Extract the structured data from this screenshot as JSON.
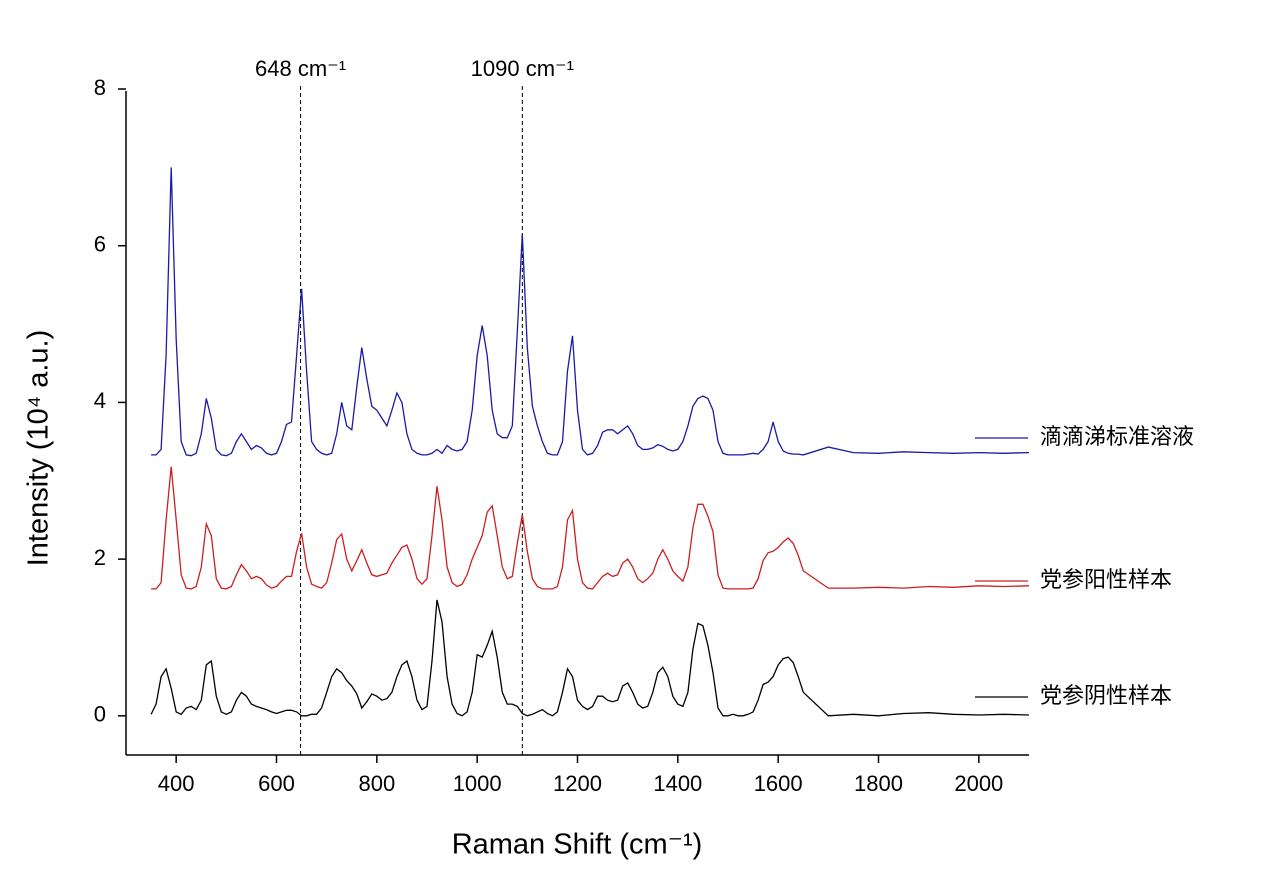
{
  "chart_data": {
    "type": "line",
    "xlabel": "Raman Shift (cm⁻¹)",
    "ylabel": "Intensity (10⁴ a.u.)",
    "xlim": [
      300,
      2100
    ],
    "ylim": [
      -0.5,
      8
    ],
    "xticks": [
      400,
      600,
      800,
      1000,
      1200,
      1400,
      1600,
      1800,
      2000
    ],
    "yticks": [
      0,
      2,
      4,
      6,
      8
    ],
    "annotations": [
      {
        "x": 648,
        "label": "648 cm⁻¹"
      },
      {
        "x": 1090,
        "label": "1090 cm⁻¹"
      }
    ],
    "x": [
      350,
      360,
      370,
      380,
      390,
      400,
      410,
      420,
      430,
      440,
      450,
      460,
      470,
      480,
      490,
      500,
      510,
      520,
      530,
      540,
      550,
      560,
      570,
      580,
      590,
      600,
      610,
      620,
      630,
      640,
      650,
      660,
      670,
      680,
      690,
      700,
      710,
      720,
      730,
      740,
      750,
      760,
      770,
      780,
      790,
      800,
      810,
      820,
      830,
      840,
      850,
      860,
      870,
      880,
      890,
      900,
      910,
      920,
      930,
      940,
      950,
      960,
      970,
      980,
      990,
      1000,
      1010,
      1020,
      1030,
      1040,
      1050,
      1060,
      1070,
      1080,
      1090,
      1100,
      1110,
      1120,
      1130,
      1140,
      1150,
      1160,
      1170,
      1180,
      1190,
      1200,
      1210,
      1220,
      1230,
      1240,
      1250,
      1260,
      1270,
      1280,
      1290,
      1300,
      1310,
      1320,
      1330,
      1340,
      1350,
      1360,
      1370,
      1380,
      1390,
      1400,
      1410,
      1420,
      1430,
      1440,
      1450,
      1460,
      1470,
      1480,
      1490,
      1500,
      1510,
      1520,
      1530,
      1540,
      1550,
      1560,
      1570,
      1580,
      1590,
      1600,
      1610,
      1620,
      1630,
      1640,
      1650,
      1700,
      1750,
      1800,
      1850,
      1900,
      1950,
      2000,
      2050,
      2100
    ],
    "series": [
      {
        "name": "滴滴涕标准溶液",
        "color": "#1a1aa8",
        "values": [
          3.33,
          3.33,
          3.4,
          4.6,
          7.0,
          4.8,
          3.5,
          3.33,
          3.32,
          3.35,
          3.6,
          4.05,
          3.8,
          3.4,
          3.33,
          3.32,
          3.35,
          3.5,
          3.6,
          3.5,
          3.4,
          3.45,
          3.42,
          3.35,
          3.33,
          3.35,
          3.5,
          3.72,
          3.75,
          4.6,
          5.45,
          4.4,
          3.5,
          3.4,
          3.35,
          3.33,
          3.35,
          3.6,
          4.0,
          3.7,
          3.65,
          4.2,
          4.7,
          4.3,
          3.95,
          3.9,
          3.8,
          3.7,
          3.9,
          4.12,
          4.0,
          3.6,
          3.4,
          3.35,
          3.33,
          3.33,
          3.35,
          3.4,
          3.35,
          3.45,
          3.4,
          3.38,
          3.4,
          3.5,
          3.9,
          4.6,
          4.98,
          4.6,
          3.9,
          3.6,
          3.55,
          3.55,
          3.7,
          4.9,
          6.15,
          4.7,
          3.95,
          3.7,
          3.5,
          3.35,
          3.33,
          3.33,
          3.5,
          4.4,
          4.85,
          3.9,
          3.4,
          3.33,
          3.35,
          3.45,
          3.62,
          3.65,
          3.65,
          3.6,
          3.65,
          3.7,
          3.6,
          3.45,
          3.4,
          3.4,
          3.42,
          3.46,
          3.44,
          3.4,
          3.38,
          3.4,
          3.5,
          3.7,
          3.95,
          4.05,
          4.08,
          4.05,
          3.9,
          3.5,
          3.35,
          3.33,
          3.33,
          3.33,
          3.33,
          3.34,
          3.35,
          3.34,
          3.4,
          3.5,
          3.75,
          3.5,
          3.38,
          3.35,
          3.34,
          3.34,
          3.33,
          3.43,
          3.36,
          3.35,
          3.37,
          3.36,
          3.35,
          3.36,
          3.35,
          3.36
        ]
      },
      {
        "name": "党参阳性样本",
        "color": "#cc1f1f",
        "values": [
          1.62,
          1.62,
          1.7,
          2.5,
          3.18,
          2.5,
          1.8,
          1.63,
          1.62,
          1.65,
          1.9,
          2.45,
          2.3,
          1.75,
          1.63,
          1.62,
          1.65,
          1.8,
          1.93,
          1.85,
          1.75,
          1.78,
          1.75,
          1.67,
          1.63,
          1.65,
          1.72,
          1.78,
          1.78,
          2.1,
          2.33,
          1.9,
          1.68,
          1.65,
          1.63,
          1.7,
          1.95,
          2.25,
          2.32,
          2.0,
          1.85,
          1.98,
          2.12,
          1.95,
          1.8,
          1.78,
          1.8,
          1.82,
          1.95,
          2.05,
          2.15,
          2.18,
          2.0,
          1.75,
          1.68,
          1.75,
          2.3,
          2.93,
          2.5,
          1.9,
          1.7,
          1.65,
          1.68,
          1.8,
          2.0,
          2.15,
          2.3,
          2.6,
          2.68,
          2.3,
          1.9,
          1.75,
          1.78,
          2.2,
          2.57,
          2.1,
          1.75,
          1.65,
          1.62,
          1.62,
          1.62,
          1.65,
          1.9,
          2.5,
          2.62,
          2.0,
          1.7,
          1.63,
          1.62,
          1.7,
          1.78,
          1.82,
          1.78,
          1.8,
          1.95,
          2.0,
          1.9,
          1.75,
          1.7,
          1.75,
          1.82,
          2.0,
          2.12,
          2.0,
          1.85,
          1.78,
          1.72,
          1.9,
          2.4,
          2.7,
          2.7,
          2.55,
          2.35,
          1.8,
          1.63,
          1.62,
          1.62,
          1.62,
          1.62,
          1.62,
          1.63,
          1.75,
          1.98,
          2.08,
          2.1,
          2.15,
          2.22,
          2.27,
          2.2,
          2.05,
          1.85,
          1.63,
          1.63,
          1.64,
          1.63,
          1.65,
          1.64,
          1.66,
          1.65,
          1.66
        ]
      },
      {
        "name": "党参阴性样本",
        "color": "#000000",
        "values": [
          0.02,
          0.15,
          0.5,
          0.6,
          0.35,
          0.05,
          0.02,
          0.1,
          0.12,
          0.08,
          0.2,
          0.65,
          0.7,
          0.25,
          0.05,
          0.02,
          0.05,
          0.2,
          0.3,
          0.25,
          0.15,
          0.12,
          0.1,
          0.08,
          0.05,
          0.03,
          0.05,
          0.07,
          0.07,
          0.05,
          0.0,
          0.0,
          0.02,
          0.02,
          0.1,
          0.3,
          0.5,
          0.6,
          0.55,
          0.45,
          0.38,
          0.28,
          0.1,
          0.18,
          0.28,
          0.25,
          0.2,
          0.22,
          0.3,
          0.5,
          0.65,
          0.7,
          0.5,
          0.2,
          0.08,
          0.12,
          0.7,
          1.48,
          1.2,
          0.5,
          0.15,
          0.03,
          0.0,
          0.05,
          0.3,
          0.78,
          0.75,
          0.9,
          1.08,
          0.75,
          0.3,
          0.15,
          0.15,
          0.12,
          0.03,
          0.0,
          0.02,
          0.05,
          0.08,
          0.03,
          0.0,
          0.05,
          0.3,
          0.6,
          0.5,
          0.2,
          0.12,
          0.08,
          0.12,
          0.25,
          0.25,
          0.2,
          0.18,
          0.2,
          0.38,
          0.42,
          0.3,
          0.15,
          0.1,
          0.12,
          0.3,
          0.55,
          0.62,
          0.5,
          0.25,
          0.15,
          0.12,
          0.3,
          0.85,
          1.18,
          1.15,
          0.9,
          0.55,
          0.1,
          0.0,
          0.0,
          0.02,
          0.0,
          0.0,
          0.02,
          0.05,
          0.2,
          0.4,
          0.43,
          0.5,
          0.65,
          0.73,
          0.75,
          0.68,
          0.5,
          0.3,
          0.0,
          0.02,
          0.0,
          0.03,
          0.04,
          0.02,
          0.01,
          0.02,
          0.01
        ]
      }
    ]
  }
}
